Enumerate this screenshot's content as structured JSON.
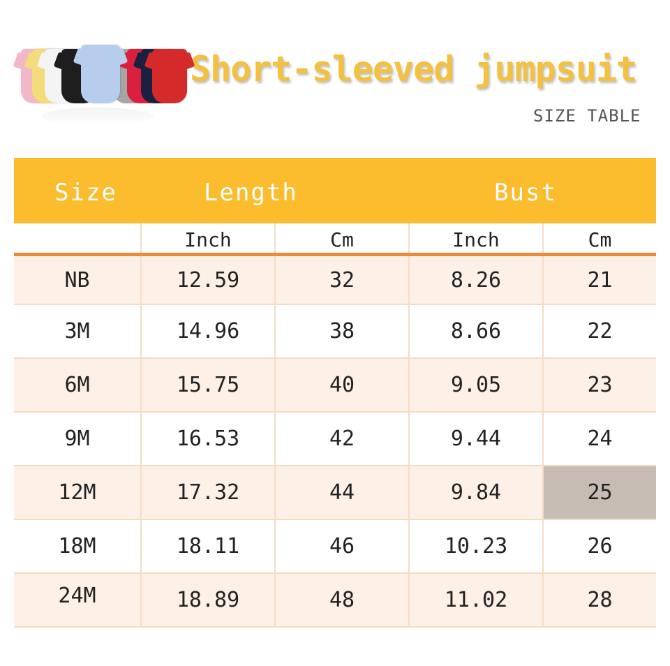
{
  "header": {
    "title": "Short-sleeved jumpsuit",
    "subtitle": "SIZE TABLE"
  },
  "product_image": {
    "description_colors": [
      "#f2b8c8",
      "#f5dc7a",
      "#f4f4f4",
      "#1e1e1e",
      "#b7cdee",
      "#a6a6a6",
      "#d9213f",
      "#1b2040",
      "#d42a2a"
    ]
  },
  "table": {
    "header_color": "#fbbd2e",
    "groups": {
      "size": "Size",
      "length": "Length",
      "bust": "Bust"
    },
    "units": [
      "Inch",
      "Cm",
      "Inch",
      "Cm"
    ],
    "rows": [
      [
        "NB",
        "12.59",
        "32",
        "8.26",
        "21"
      ],
      [
        "3M",
        "14.96",
        "38",
        "8.66",
        "22"
      ],
      [
        "6M",
        "15.75",
        "40",
        "9.05",
        "23"
      ],
      [
        "9M",
        "16.53",
        "42",
        "9.44",
        "24"
      ],
      [
        "12M",
        "17.32",
        "44",
        "9.84",
        "25"
      ],
      [
        "18M",
        "18.11",
        "46",
        "10.23",
        "26"
      ],
      [
        "24M",
        "18.89",
        "48",
        "11.02",
        "28"
      ]
    ]
  }
}
